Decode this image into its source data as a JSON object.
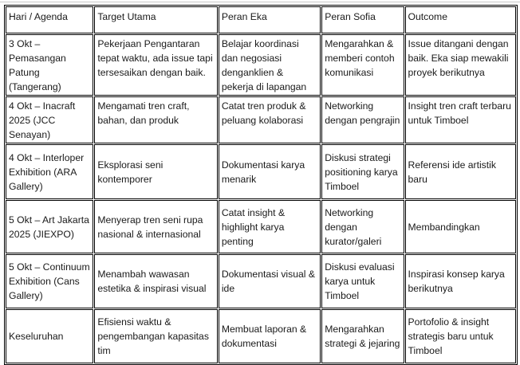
{
  "table": {
    "headers": [
      "Hari / Agenda",
      "Target Utama",
      "Peran Eka",
      "Peran Sofia",
      "Outcome"
    ],
    "rows": [
      [
        "3 Okt – Pemasangan Patung (Tangerang)",
        "Pekerjaan Pengantaran tepat waktu, ada issue tapi tersesaikan dengan baik.",
        "Belajar koordinasi dan negosiasi denganklien & pekerja di lapangan",
        "Mengarahkan & memberi contoh komunikasi",
        "Issue ditangani dengan baik. Eka siap mewakili proyek berikutnya"
      ],
      [
        "4 Okt – Inacraft 2025 (JCC Senayan)",
        "Mengamati tren craft, bahan, dan produk",
        "Catat tren produk & peluang kolaborasi",
        "Networking dengan pengrajin",
        "Insight tren craft terbaru untuk Timboel"
      ],
      [
        "4 Okt – Interloper Exhibition (ARA Gallery)",
        "Eksplorasi seni kontemporer",
        "Dokumentasi karya menarik",
        "Diskusi strategi positioning karya Timboel",
        "Referensi ide artistik baru"
      ],
      [
        "5 Okt – Art Jakarta 2025 (JIEXPO)",
        "Menyerap tren seni rupa nasional & internasional",
        "Catat insight & highlight karya penting",
        "Networking dengan kurator/galeri",
        "Membandingkan"
      ],
      [
        "5 Okt – Continuum Exhibition (Cans Gallery)",
        "Menambah wawasan estetika & inspirasi visual",
        "Dokumentasi visual & ide",
        "Diskusi evaluasi karya untuk Timboel",
        "Inspirasi konsep karya berikutnya"
      ],
      [
        "Keseluruhan",
        "Efisiensi waktu & pengembangan kapasitas tim",
        "Membuat laporan & dokumentasi",
        "Mengarahkan strategi & jejaring",
        "Portofolio & insight strategis baru untuk Timboel"
      ]
    ]
  }
}
